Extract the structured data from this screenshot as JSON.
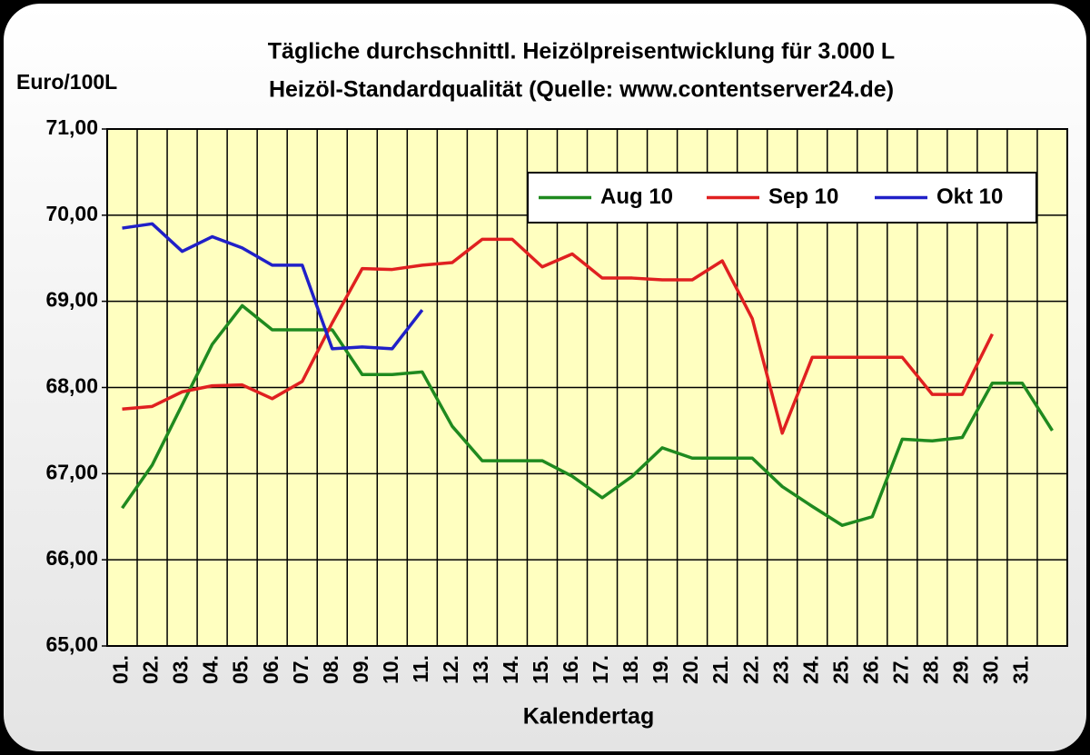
{
  "chart_data": {
    "type": "line",
    "title": "Tägliche durchschnittl. Heizölpreisentwicklung für 3.000 L",
    "subtitle": "Heizöl-Standardqualität (Quelle: www.contentserver24.de)",
    "y_label": "Euro/100L",
    "x_label": "Kalendertag",
    "categories": [
      "01.",
      "02.",
      "03.",
      "04.",
      "05.",
      "06.",
      "07.",
      "08.",
      "09.",
      "10.",
      "11.",
      "12.",
      "13.",
      "14.",
      "15.",
      "16.",
      "17.",
      "18.",
      "19.",
      "20.",
      "21.",
      "22.",
      "23.",
      "24.",
      "25.",
      "26.",
      "27.",
      "28.",
      "29.",
      "30.",
      "31.",
      null
    ],
    "series": [
      {
        "name": "Aug 10",
        "color": "#1f8a1f",
        "values": [
          66.6,
          67.1,
          67.8,
          68.5,
          68.95,
          68.67,
          68.67,
          68.67,
          68.15,
          68.15,
          68.18,
          67.55,
          67.15,
          67.15,
          67.15,
          66.97,
          66.72,
          66.97,
          67.3,
          67.18,
          67.18,
          67.18,
          66.85,
          66.62,
          66.4,
          66.5,
          67.4,
          67.38,
          67.42,
          68.05,
          68.05,
          67.5
        ]
      },
      {
        "name": "Sep 10",
        "color": "#e02020",
        "values": [
          67.75,
          67.78,
          67.95,
          68.02,
          68.03,
          67.87,
          68.07,
          68.75,
          69.38,
          69.37,
          69.42,
          69.45,
          69.72,
          69.72,
          69.4,
          69.55,
          69.27,
          69.27,
          69.25,
          69.25,
          69.47,
          68.8,
          67.47,
          68.35,
          68.35,
          68.35,
          68.35,
          67.92,
          67.92,
          68.62,
          null,
          null
        ]
      },
      {
        "name": "Okt 10",
        "color": "#2020c8",
        "values": [
          69.85,
          69.9,
          69.58,
          69.75,
          69.62,
          69.42,
          69.42,
          68.45,
          68.47,
          68.45,
          68.9,
          null,
          null,
          null,
          null,
          null,
          null,
          null,
          null,
          null,
          null,
          null,
          null,
          null,
          null,
          null,
          null,
          null,
          null,
          null,
          null,
          null
        ]
      }
    ],
    "ylim": [
      65,
      71
    ],
    "yticks": [
      {
        "value": 65,
        "label": "65,00"
      },
      {
        "value": 66,
        "label": "66,00"
      },
      {
        "value": 67,
        "label": "67,00"
      },
      {
        "value": 68,
        "label": "68,00"
      },
      {
        "value": 69,
        "label": "69,00"
      },
      {
        "value": 70,
        "label": "70,00"
      },
      {
        "value": 71,
        "label": "71,00"
      }
    ],
    "grid": true,
    "legend": "top-right"
  }
}
